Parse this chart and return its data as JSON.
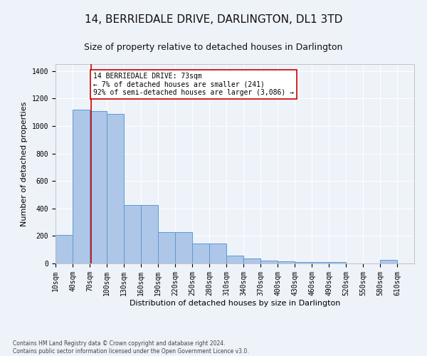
{
  "title": "14, BERRIEDALE DRIVE, DARLINGTON, DL1 3TD",
  "subtitle": "Size of property relative to detached houses in Darlington",
  "xlabel": "Distribution of detached houses by size in Darlington",
  "ylabel": "Number of detached properties",
  "footer_line1": "Contains HM Land Registry data © Crown copyright and database right 2024.",
  "footer_line2": "Contains public sector information licensed under the Open Government Licence v3.0.",
  "bar_edges": [
    10,
    40,
    70,
    100,
    130,
    160,
    190,
    220,
    250,
    280,
    310,
    340,
    370,
    400,
    430,
    460,
    490,
    520,
    550,
    580,
    610
  ],
  "bar_heights": [
    205,
    1120,
    1110,
    1090,
    425,
    425,
    230,
    230,
    145,
    145,
    55,
    35,
    20,
    15,
    10,
    10,
    10,
    0,
    0,
    25
  ],
  "bar_color": "#aec6e8",
  "bar_edge_color": "#5b9bd5",
  "property_size": 73,
  "vline_color": "#cc0000",
  "annotation_text": "14 BERRIEDALE DRIVE: 73sqm\n← 7% of detached houses are smaller (241)\n92% of semi-detached houses are larger (3,086) →",
  "annotation_box_color": "#ffffff",
  "annotation_box_edge_color": "#cc0000",
  "ylim": [
    0,
    1450
  ],
  "yticks": [
    0,
    200,
    400,
    600,
    800,
    1000,
    1200,
    1400
  ],
  "background_color": "#eef2f9",
  "plot_bg_color": "#eef2f9",
  "grid_color": "#ffffff",
  "title_fontsize": 11,
  "subtitle_fontsize": 9,
  "tick_label_fontsize": 7,
  "axis_label_fontsize": 8,
  "footer_fontsize": 5.5
}
